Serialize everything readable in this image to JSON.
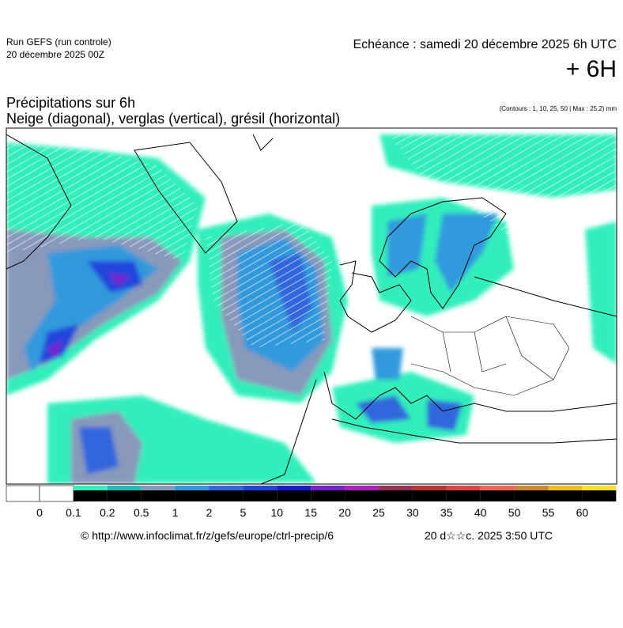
{
  "header": {
    "run": "Run GEFS (run controle)",
    "run_date": "20 décembre 2025 00Z",
    "echeance": "Echéance : samedi 20 décembre 2025 6h UTC",
    "lead": "+ 6H"
  },
  "map": {
    "title": "Précipitations sur 6h",
    "subtitle": "Neige (diagonal), verglas (vertical), grésil (horizontal)",
    "contours": "(Contours : 1, 10, 25, 50 | Max : 25.2) mm"
  },
  "legend": {
    "ticks": [
      0,
      0.1,
      0.2,
      0.5,
      1,
      2,
      5,
      10,
      15,
      20,
      25,
      30,
      35,
      40,
      50,
      55,
      60
    ],
    "colors": [
      "#33eebb",
      "#22bbbb",
      "#8899bb",
      "#3399dd",
      "#3366dd",
      "#2244dd",
      "#1a1acc",
      "#7722cc",
      "#aa22bb",
      "#993355",
      "#bb3333",
      "#dd4444",
      "#ee6655",
      "#cc8833",
      "#eebb22",
      "#f8e030"
    ]
  },
  "footer": {
    "url": "© http://www.infoclimat.fr/z/gefs/europe/ctrl-precip/6",
    "time": "20 d☆☆c. 2025  3:50 UTC"
  }
}
